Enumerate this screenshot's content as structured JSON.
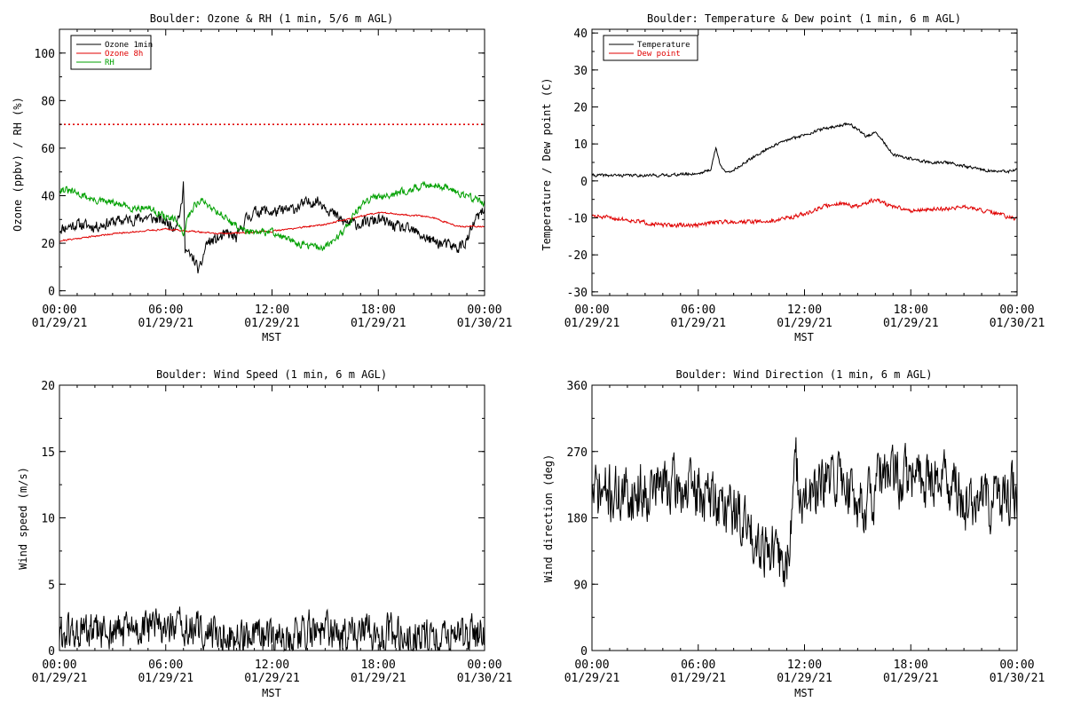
{
  "colors": {
    "black": "#000000",
    "red": "#e00000",
    "green": "#00a000"
  },
  "chart_data": [
    {
      "type": "line",
      "title": "Boulder: Ozone & RH (1 min, 5/6 m AGL)",
      "ylabel": "Ozone (ppbv) / RH (%)",
      "xlabel": "MST",
      "ylim": [
        -2,
        110
      ],
      "yticks": [
        0,
        20,
        40,
        60,
        80,
        100
      ],
      "xticks": [
        {
          "time": "00:00",
          "date": "01/29/21"
        },
        {
          "time": "06:00",
          "date": "01/29/21"
        },
        {
          "time": "12:00",
          "date": "01/29/21"
        },
        {
          "time": "18:00",
          "date": "01/29/21"
        },
        {
          "time": "00:00",
          "date": "01/30/21"
        }
      ],
      "legend": "top-left",
      "reference_line": {
        "y": 70,
        "color": "#e00000",
        "style": "dotted"
      },
      "series": [
        {
          "name": "Ozone 1min",
          "color": "#000000",
          "noise": 2.2,
          "seed": 11,
          "x": [
            0,
            1,
            2,
            3,
            4,
            5,
            6,
            6.5,
            6.9,
            7.0,
            7.1,
            7.3,
            7.6,
            7.9,
            8.3,
            9,
            9.5,
            10,
            10.5,
            11,
            11.5,
            12,
            13,
            14,
            14.5,
            15,
            15.5,
            16,
            17,
            18,
            19,
            20,
            21,
            22,
            22.5,
            23,
            23.5,
            24
          ],
          "values": [
            26,
            28,
            27,
            29,
            30,
            31,
            29,
            27,
            35,
            45,
            18,
            15,
            13,
            8,
            20,
            22,
            24,
            22,
            30,
            33,
            34,
            33,
            34,
            37,
            38,
            36,
            32,
            29,
            28,
            30,
            27,
            25,
            21,
            19,
            18,
            21,
            30,
            34
          ]
        },
        {
          "name": "Ozone 8h",
          "color": "#e00000",
          "noise": 0.3,
          "seed": 21,
          "x": [
            0,
            3,
            6,
            9,
            12,
            15,
            18,
            21,
            22.5,
            24
          ],
          "values": [
            21,
            24,
            26,
            24,
            25,
            28,
            33,
            31,
            27,
            27
          ]
        },
        {
          "name": "RH",
          "color": "#00a000",
          "noise": 1.4,
          "seed": 31,
          "x": [
            0,
            1,
            2,
            3,
            4,
            5,
            6,
            6.7,
            7.0,
            7.2,
            7.6,
            8,
            9,
            10,
            11,
            12,
            13,
            14,
            15,
            16,
            17,
            18,
            19,
            20,
            21,
            22,
            23,
            24
          ],
          "values": [
            43,
            41,
            38,
            37,
            35,
            35,
            31,
            29,
            22,
            30,
            36,
            38,
            33,
            27,
            24,
            25,
            21,
            19,
            18,
            25,
            36,
            40,
            41,
            43,
            45,
            43,
            40,
            37
          ]
        }
      ]
    },
    {
      "type": "line",
      "title": "Boulder: Temperature & Dew point (1 min, 6 m AGL)",
      "ylabel": "Temperature / Dew point (C)",
      "xlabel": "MST",
      "ylim": [
        -31,
        41
      ],
      "yticks": [
        -30,
        -20,
        -10,
        0,
        10,
        20,
        30,
        40
      ],
      "xticks": [
        {
          "time": "00:00",
          "date": "01/29/21"
        },
        {
          "time": "06:00",
          "date": "01/29/21"
        },
        {
          "time": "12:00",
          "date": "01/29/21"
        },
        {
          "time": "18:00",
          "date": "01/29/21"
        },
        {
          "time": "00:00",
          "date": "01/30/21"
        }
      ],
      "legend": "top-left",
      "series": [
        {
          "name": "Temperature",
          "color": "#000000",
          "noise": 0.35,
          "seed": 41,
          "x": [
            0,
            2,
            4,
            6,
            6.7,
            7.0,
            7.2,
            7.6,
            8,
            9,
            10,
            11,
            12,
            13,
            14,
            14.5,
            15,
            15.5,
            16,
            16.4,
            17,
            18,
            19,
            20,
            21,
            22,
            23,
            23.5,
            24
          ],
          "values": [
            1.5,
            1.5,
            1.5,
            2,
            3,
            9,
            5,
            2,
            3,
            6,
            9,
            11,
            12.5,
            14,
            15,
            15.5,
            14,
            12,
            13,
            11,
            7,
            6,
            5,
            5,
            4,
            3,
            2.5,
            2.5,
            3
          ]
        },
        {
          "name": "Dew point",
          "color": "#e00000",
          "noise": 0.5,
          "seed": 51,
          "x": [
            0,
            2,
            4,
            6,
            7,
            8,
            10,
            12,
            13,
            14,
            15,
            16,
            17,
            18,
            20,
            21,
            22,
            23,
            24
          ],
          "values": [
            -9.5,
            -10.5,
            -12,
            -12,
            -11,
            -11,
            -11,
            -9,
            -7,
            -6,
            -7,
            -5,
            -7,
            -8,
            -7.5,
            -7,
            -8,
            -9,
            -10.5
          ]
        }
      ]
    },
    {
      "type": "line",
      "title": "Boulder: Wind Speed (1 min, 6 m AGL)",
      "ylabel": "Wind speed (m/s)",
      "xlabel": "MST",
      "ylim": [
        0,
        20
      ],
      "yticks": [
        0,
        5,
        10,
        15,
        20
      ],
      "xticks": [
        {
          "time": "00:00",
          "date": "01/29/21"
        },
        {
          "time": "06:00",
          "date": "01/29/21"
        },
        {
          "time": "12:00",
          "date": "01/29/21"
        },
        {
          "time": "18:00",
          "date": "01/29/21"
        },
        {
          "time": "00:00",
          "date": "01/30/21"
        }
      ],
      "series": [
        {
          "name": "",
          "color": "#000000",
          "noise": 1.3,
          "seed": 61,
          "min": 0,
          "x": [
            0,
            3,
            6,
            8,
            10,
            12,
            14,
            16,
            18,
            20,
            22,
            24
          ],
          "values": [
            1.2,
            1.4,
            1.8,
            1.4,
            1.0,
            0.8,
            1.6,
            1.2,
            1.4,
            1.0,
            1.0,
            1.3
          ]
        }
      ]
    },
    {
      "type": "line",
      "title": "Boulder: Wind Direction (1 min, 6 m AGL)",
      "ylabel": "Wind direction (deg)",
      "xlabel": "MST",
      "ylim": [
        0,
        360
      ],
      "yticks": [
        0,
        90,
        180,
        270,
        360
      ],
      "xticks": [
        {
          "time": "00:00",
          "date": "01/29/21"
        },
        {
          "time": "06:00",
          "date": "01/29/21"
        },
        {
          "time": "12:00",
          "date": "01/29/21"
        },
        {
          "time": "18:00",
          "date": "01/29/21"
        },
        {
          "time": "00:00",
          "date": "01/30/21"
        }
      ],
      "series": [
        {
          "name": "",
          "color": "#000000",
          "noise": 35,
          "seed": 71,
          "min": 0,
          "max": 360,
          "x": [
            0,
            2,
            4,
            6,
            8,
            9,
            10,
            11,
            11.5,
            12,
            13,
            14,
            15,
            16,
            16.2,
            17,
            18,
            20,
            21,
            22,
            23,
            24
          ],
          "values": [
            215,
            210,
            225,
            215,
            190,
            160,
            140,
            110,
            250,
            200,
            220,
            240,
            200,
            210,
            235,
            235,
            235,
            235,
            200,
            200,
            205,
            210
          ]
        }
      ]
    }
  ]
}
